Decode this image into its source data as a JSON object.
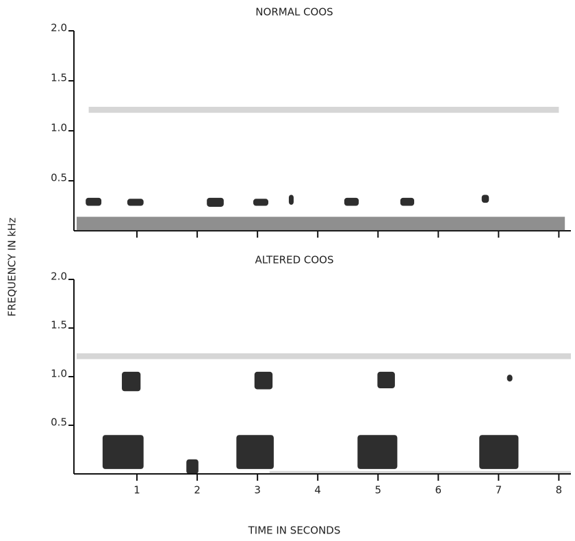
{
  "ylabel": "FREQUENCY IN kHz",
  "chart_data": [
    {
      "type": "spectrogram",
      "title": "NORMAL COOS",
      "xlim": [
        0,
        8.2
      ],
      "ylim": [
        0,
        2.0
      ],
      "xticks": [
        1,
        2,
        3,
        4,
        5,
        6,
        7,
        8
      ],
      "xtick_labels": false,
      "yticks": [
        0.5,
        {
          "value": 1,
          "label": "1.0"
        },
        1.5,
        {
          "value": 2,
          "label": "2.0"
        }
      ],
      "syllable_color": "#111111",
      "noise_color": "#333333",
      "syllables": [
        {
          "t": [
            0.15,
            0.41
          ],
          "f": [
            0.25,
            0.33
          ]
        },
        {
          "t": [
            0.84,
            1.11
          ],
          "f": [
            0.25,
            0.32
          ]
        },
        {
          "t": [
            2.16,
            2.44
          ],
          "f": [
            0.24,
            0.33
          ]
        },
        {
          "t": [
            2.93,
            3.18
          ],
          "f": [
            0.25,
            0.32
          ]
        },
        {
          "t": [
            3.52,
            3.6
          ],
          "f": [
            0.26,
            0.36
          ]
        },
        {
          "t": [
            4.44,
            4.68
          ],
          "f": [
            0.25,
            0.33
          ]
        },
        {
          "t": [
            5.37,
            5.6
          ],
          "f": [
            0.25,
            0.33
          ]
        },
        {
          "t": [
            6.72,
            6.84
          ],
          "f": [
            0.28,
            0.36
          ]
        }
      ],
      "noise": [
        {
          "t": [
            0,
            8.1
          ],
          "f": [
            0,
            0.14
          ]
        },
        {
          "t": [
            0.2,
            8.0
          ],
          "f": [
            1.18,
            1.24
          ]
        }
      ]
    },
    {
      "type": "spectrogram",
      "title": "ALTERED COOS",
      "xlabel": "TIME IN SECONDS",
      "xlim": [
        0,
        8.2
      ],
      "ylim": [
        0,
        2.0
      ],
      "xticks": [
        1,
        2,
        3,
        4,
        5,
        6,
        7,
        8
      ],
      "xtick_labels": true,
      "yticks": [
        0.5,
        {
          "value": 1,
          "label": "1.0"
        },
        1.5,
        {
          "value": 2,
          "label": "2.0"
        }
      ],
      "syllable_color": "#111111",
      "noise_color": "#333333",
      "syllables": [
        {
          "t": [
            0.43,
            1.11
          ],
          "f": [
            0.05,
            0.4
          ]
        },
        {
          "t": [
            0.75,
            1.06
          ],
          "f": [
            0.85,
            1.05
          ]
        },
        {
          "t": [
            1.82,
            2.02
          ],
          "f": [
            0,
            0.15
          ]
        },
        {
          "t": [
            2.65,
            3.27
          ],
          "f": [
            0.05,
            0.4
          ]
        },
        {
          "t": [
            2.95,
            3.25
          ],
          "f": [
            0.87,
            1.05
          ]
        },
        {
          "t": [
            4.66,
            5.32
          ],
          "f": [
            0.05,
            0.4
          ]
        },
        {
          "t": [
            4.99,
            5.28
          ],
          "f": [
            0.88,
            1.05
          ]
        },
        {
          "t": [
            6.68,
            7.33
          ],
          "f": [
            0.05,
            0.4
          ]
        },
        {
          "t": [
            7.14,
            7.23
          ],
          "f": [
            0.95,
            1.02
          ]
        }
      ],
      "noise": [
        {
          "t": [
            0,
            8.2
          ],
          "f": [
            1.18,
            1.24
          ]
        },
        {
          "t": [
            3.2,
            8.2
          ],
          "f": [
            0,
            0.03
          ]
        }
      ]
    }
  ]
}
